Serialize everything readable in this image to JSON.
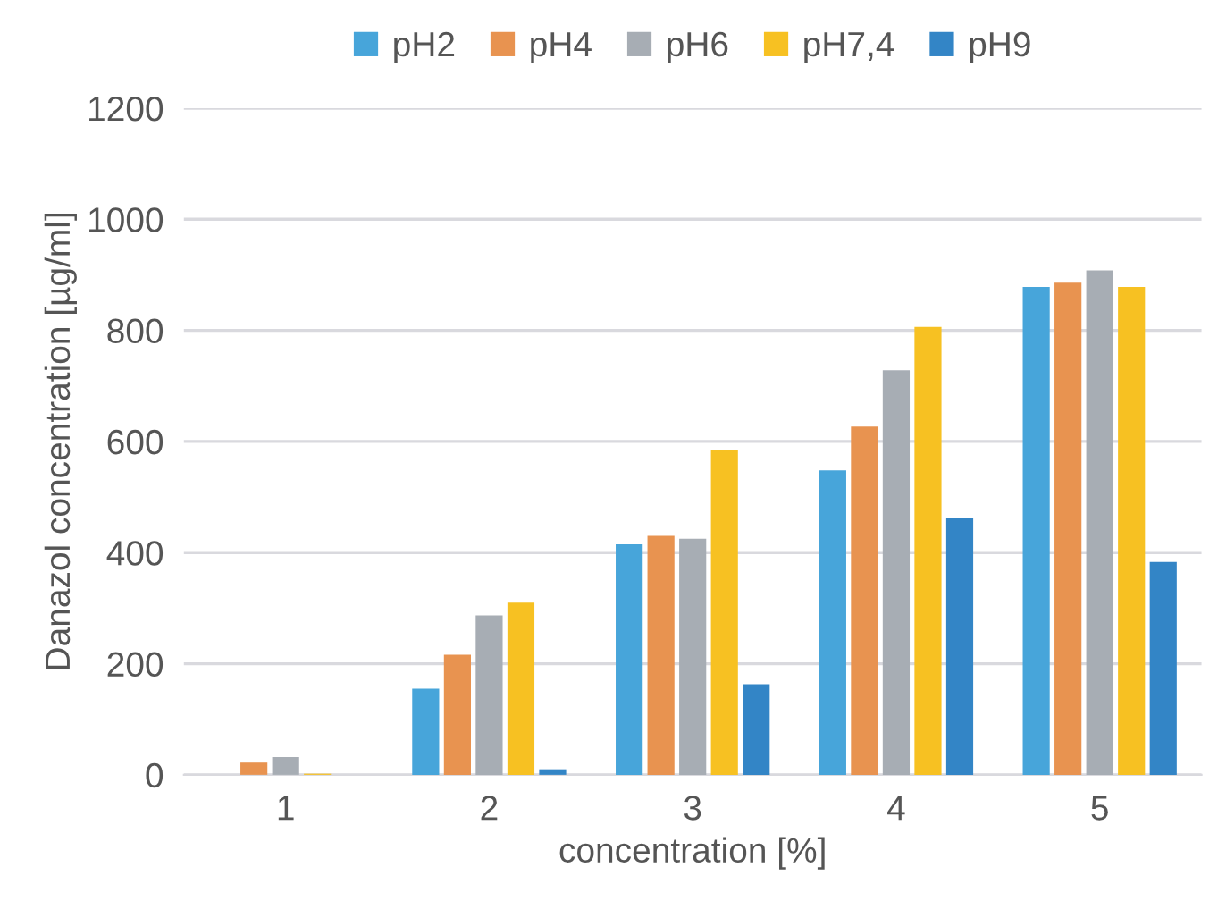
{
  "chart_data": {
    "type": "bar",
    "ylabel": "Danazol concentration [µg/ml]",
    "xlabel": "concentration [%]",
    "categories": [
      "1",
      "2",
      "3",
      "4",
      "5"
    ],
    "series": [
      {
        "name": "pH2",
        "color": "#47a5da",
        "values": [
          0,
          155,
          415,
          548,
          878
        ]
      },
      {
        "name": "pH4",
        "color": "#e89350",
        "values": [
          22,
          216,
          430,
          627,
          886
        ]
      },
      {
        "name": "pH6",
        "color": "#a7adb4",
        "values": [
          32,
          287,
          425,
          728,
          908
        ]
      },
      {
        "name": "pH7,4",
        "color": "#f7c122",
        "values": [
          2,
          310,
          585,
          806,
          878
        ]
      },
      {
        "name": "pH9",
        "color": "#3385c6",
        "values": [
          0,
          10,
          163,
          462,
          383
        ]
      }
    ],
    "ylim": [
      0,
      1200
    ],
    "yticks": [
      0,
      200,
      400,
      600,
      800,
      1000,
      1200
    ],
    "grid": "y",
    "legend": "top"
  }
}
